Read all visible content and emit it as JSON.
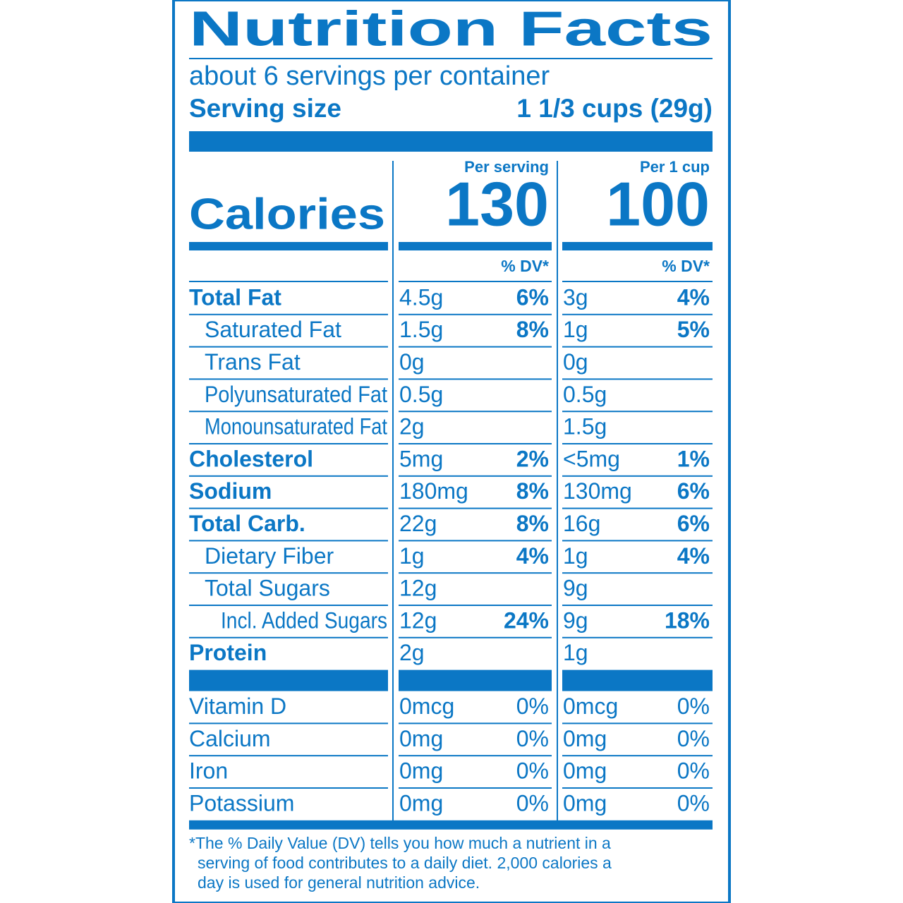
{
  "title": "Nutrition Facts",
  "servings": "about 6 servings per container",
  "serving_size": {
    "label": "Serving size",
    "value": "1 1/3 cups (29g)"
  },
  "calories": {
    "label": "Calories",
    "columns": [
      {
        "header": "Per serving",
        "value": "130",
        "dv_header": "% DV*"
      },
      {
        "header": "Per 1 cup",
        "value": "100",
        "dv_header": "% DV*"
      }
    ]
  },
  "nutrients": [
    {
      "name": "Total Fat",
      "bold": true,
      "indent": 0,
      "columns": [
        [
          "4.5g",
          "6%"
        ],
        [
          "3g",
          "4%"
        ]
      ]
    },
    {
      "name": "Saturated Fat",
      "bold": false,
      "indent": 1,
      "columns": [
        [
          "1.5g",
          "8%"
        ],
        [
          "1g",
          "5%"
        ]
      ]
    },
    {
      "name": "Trans Fat",
      "bold": false,
      "indent": 1,
      "columns": [
        [
          "0g"
        ],
        [
          "0g"
        ]
      ]
    },
    {
      "name": "Polyunsaturated Fat",
      "bold": false,
      "indent": 1,
      "columns": [
        [
          "0.5g"
        ],
        [
          "0.5g"
        ]
      ]
    },
    {
      "name": "Monounsaturated Fat",
      "bold": false,
      "indent": 1,
      "columns": [
        [
          "2g"
        ],
        [
          "1.5g"
        ]
      ]
    },
    {
      "name": "Cholesterol",
      "bold": true,
      "indent": 0,
      "columns": [
        [
          "5mg",
          "2%"
        ],
        [
          "<5mg",
          "1%"
        ]
      ]
    },
    {
      "name": "Sodium",
      "bold": true,
      "indent": 0,
      "columns": [
        [
          "180mg",
          "8%"
        ],
        [
          "130mg",
          "6%"
        ]
      ]
    },
    {
      "name": "Total Carb.",
      "bold": true,
      "indent": 0,
      "columns": [
        [
          "22g",
          "8%"
        ],
        [
          "16g",
          "6%"
        ]
      ]
    },
    {
      "name": "Dietary Fiber",
      "bold": false,
      "indent": 1,
      "columns": [
        [
          "1g",
          "4%"
        ],
        [
          "1g",
          "4%"
        ]
      ]
    },
    {
      "name": "Total Sugars",
      "bold": false,
      "indent": 1,
      "columns": [
        [
          "12g"
        ],
        [
          "9g"
        ]
      ]
    },
    {
      "name": "Incl. Added Sugars",
      "bold": false,
      "indent": 2,
      "columns": [
        [
          "12g",
          "24%"
        ],
        [
          "9g",
          "18%"
        ]
      ]
    },
    {
      "name": "Protein",
      "bold": true,
      "indent": 0,
      "columns": [
        [
          "2g"
        ],
        [
          "1g"
        ]
      ]
    }
  ],
  "vitamins": [
    {
      "name": "Vitamin D",
      "columns": [
        [
          "0mcg",
          "0%"
        ],
        [
          "0mcg",
          "0%"
        ]
      ]
    },
    {
      "name": "Calcium",
      "columns": [
        [
          "0mg",
          "0%"
        ],
        [
          "0mg",
          "0%"
        ]
      ]
    },
    {
      "name": "Iron",
      "columns": [
        [
          "0mg",
          "0%"
        ],
        [
          "0mg",
          "0%"
        ]
      ]
    },
    {
      "name": "Potassium",
      "columns": [
        [
          "0mg",
          "0%"
        ],
        [
          "0mg",
          "0%"
        ]
      ]
    }
  ],
  "footnote": [
    "*The % Daily Value (DV) tells you how much a nutrient in a",
    "serving of food contributes to a daily diet. 2,000 calories a",
    "day is used for general nutrition advice."
  ]
}
